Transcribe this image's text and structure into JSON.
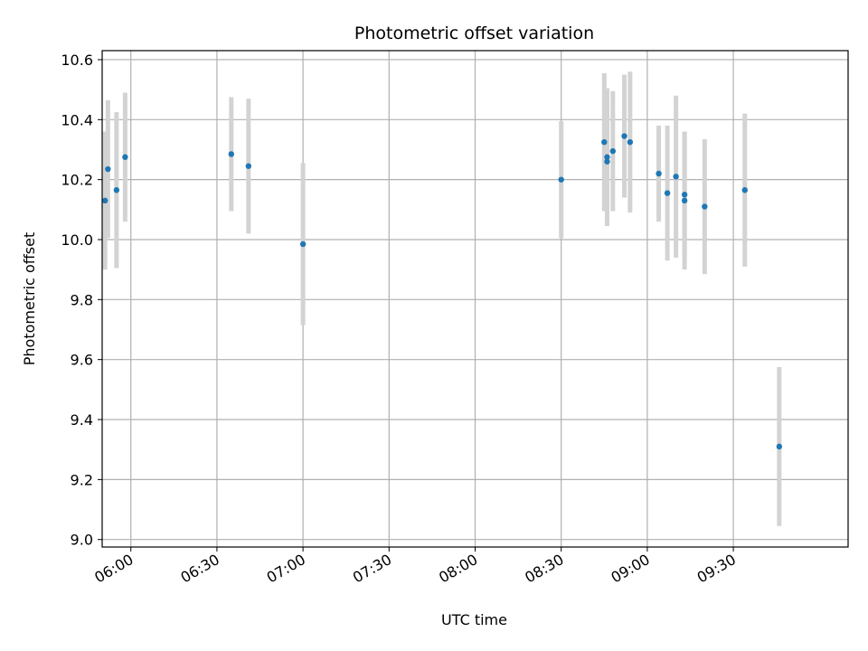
{
  "chart_data": {
    "type": "scatter",
    "title": "Photometric offset variation",
    "xlabel": "UTC time",
    "ylabel": "Photometric offset",
    "xlim": [
      "05:50",
      "10:10"
    ],
    "ylim": [
      8.975,
      10.63
    ],
    "grid": true,
    "errorbar_color": "#d3d3d3",
    "point_color": "#1f77b4",
    "x_ticks": [
      "06:00",
      "06:30",
      "07:00",
      "07:30",
      "08:00",
      "08:30",
      "09:00",
      "09:30"
    ],
    "y_ticks": [
      "9.0",
      "9.2",
      "9.4",
      "9.6",
      "9.8",
      "10.0",
      "10.2",
      "10.4",
      "10.6"
    ],
    "points": [
      {
        "x": "05:51",
        "y": 10.13,
        "err": 0.23
      },
      {
        "x": "05:52",
        "y": 10.235,
        "err": 0.23
      },
      {
        "x": "05:55",
        "y": 10.165,
        "err": 0.26
      },
      {
        "x": "05:58",
        "y": 10.275,
        "err": 0.215
      },
      {
        "x": "06:35",
        "y": 10.285,
        "err": 0.19
      },
      {
        "x": "06:41",
        "y": 10.245,
        "err": 0.225
      },
      {
        "x": "07:00",
        "y": 9.985,
        "err": 0.27
      },
      {
        "x": "08:30",
        "y": 10.2,
        "err": 0.195
      },
      {
        "x": "08:45",
        "y": 10.325,
        "err": 0.23
      },
      {
        "x": "08:46",
        "y": 10.275,
        "err": 0.23
      },
      {
        "x": "08:46",
        "y": 10.26,
        "err": 0.215
      },
      {
        "x": "08:48",
        "y": 10.295,
        "err": 0.2
      },
      {
        "x": "08:52",
        "y": 10.345,
        "err": 0.205
      },
      {
        "x": "08:54",
        "y": 10.325,
        "err": 0.235
      },
      {
        "x": "09:04",
        "y": 10.22,
        "err": 0.16
      },
      {
        "x": "09:07",
        "y": 10.155,
        "err": 0.225
      },
      {
        "x": "09:10",
        "y": 10.21,
        "err": 0.27
      },
      {
        "x": "09:13",
        "y": 10.15,
        "err": 0.21
      },
      {
        "x": "09:13",
        "y": 10.13,
        "err": 0.23
      },
      {
        "x": "09:20",
        "y": 10.11,
        "err": 0.225
      },
      {
        "x": "09:34",
        "y": 10.165,
        "err": 0.255
      },
      {
        "x": "09:46",
        "y": 9.31,
        "err": 0.265
      }
    ]
  }
}
